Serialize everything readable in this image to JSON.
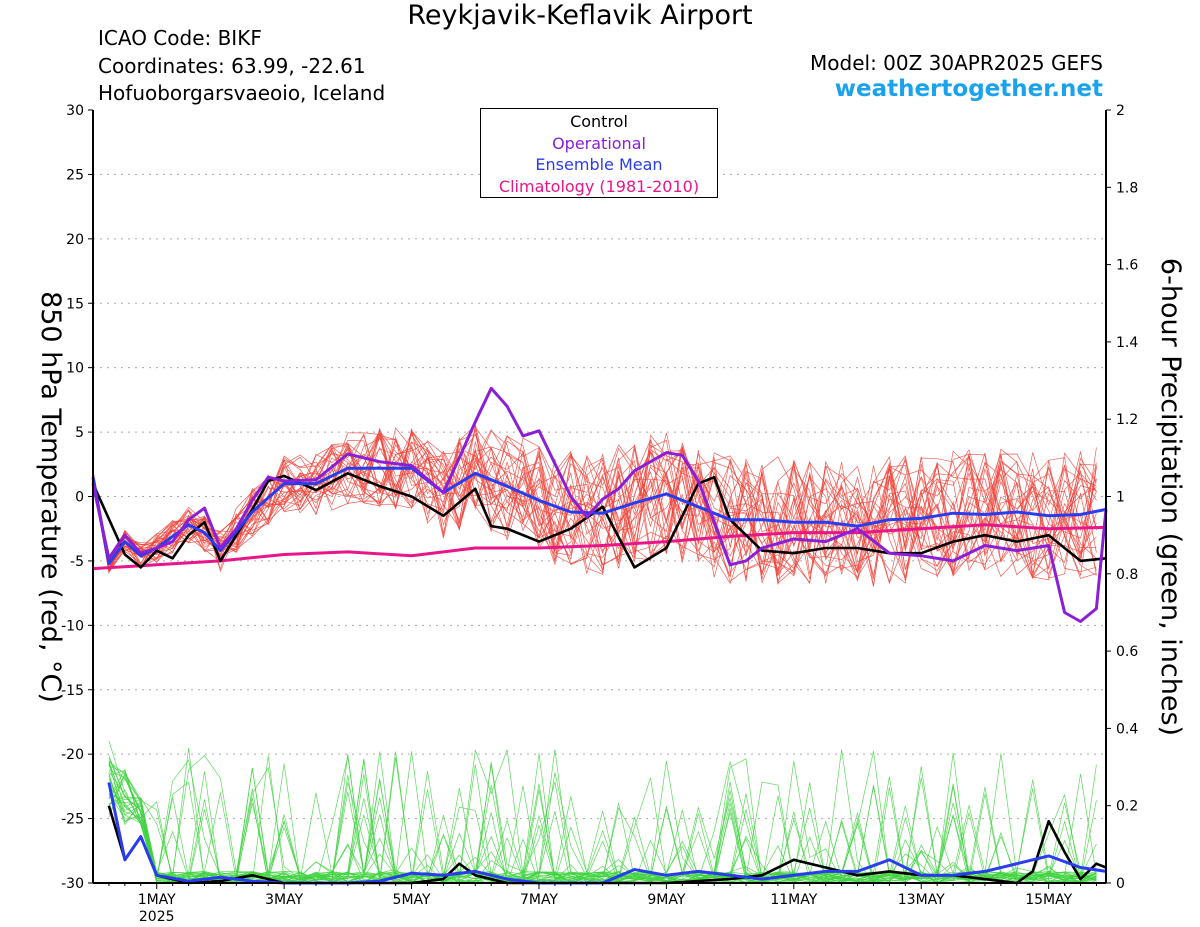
{
  "header": {
    "title": "Reykjavik-Keflavik Airport",
    "icao": "ICAO Code: BIKF",
    "coordinates": "Coordinates: 63.99, -22.61",
    "place": "Hofuoborgarsvaeoio, Iceland",
    "model": "Model: 00Z 30APR2025 GEFS",
    "website": "weathertogether.net"
  },
  "colors": {
    "control": "#000000",
    "operational": "#8a1fd6",
    "ensemble_mean": "#2a3cf0",
    "climatology": "#e8168a",
    "ensemble_temp": "#f0433a",
    "ensemble_precip": "#3fd23f",
    "website": "#1aa3ec"
  },
  "legend": {
    "items": [
      {
        "label": "Control",
        "color": "#000000"
      },
      {
        "label": "Operational",
        "color": "#8a1fd6"
      },
      {
        "label": "Ensemble Mean",
        "color": "#2a3cf0"
      },
      {
        "label": "Climatology (1981-2010)",
        "color": "#e8168a"
      }
    ]
  },
  "chart_data": {
    "type": "line",
    "title": "Reykjavik-Keflavik Airport",
    "ylabel_left": "850 hPa Temperature (red, °C)",
    "ylabel_right": "6-hour Precipitation (green, inches)",
    "x_unit": "days since 00Z 30APR2025",
    "xlim": [
      0,
      15.9
    ],
    "ylim_left": [
      -30,
      30
    ],
    "ylim_right": [
      0,
      2
    ],
    "yticks_left": [
      30,
      25,
      20,
      15,
      10,
      5,
      0,
      -5,
      -10,
      -15,
      -20,
      -25,
      -30
    ],
    "yticks_right": [
      "2",
      "1.8",
      "1.6",
      "1.4",
      "1.2",
      "1",
      "0.8",
      "0.6",
      "0.4",
      "0.2",
      "0"
    ],
    "xticks": [
      {
        "x": 1,
        "label": "1MAY",
        "sub": "2025"
      },
      {
        "x": 3,
        "label": "3MAY"
      },
      {
        "x": 5,
        "label": "5MAY"
      },
      {
        "x": 7,
        "label": "7MAY"
      },
      {
        "x": 9,
        "label": "9MAY"
      },
      {
        "x": 11,
        "label": "11MAY"
      },
      {
        "x": 13,
        "label": "13MAY"
      },
      {
        "x": 15,
        "label": "15MAY"
      }
    ],
    "grid": "dotted-horizontal",
    "legend_position": "top-center",
    "series": [
      {
        "name": "Control",
        "axis": "left",
        "color": "#000000",
        "x": [
          0,
          0.5,
          0.75,
          1,
          1.25,
          1.5,
          1.75,
          2,
          2.25,
          2.5,
          2.75,
          3,
          3.5,
          4,
          4.5,
          5,
          5.5,
          6,
          6.25,
          6.5,
          7,
          7.5,
          8,
          8.5,
          9,
          9.5,
          9.75,
          10,
          10.5,
          11,
          11.5,
          12,
          12.5,
          13,
          13.5,
          14,
          14.5,
          15,
          15.5,
          15.9
        ],
        "y": [
          1,
          -4.5,
          -5.5,
          -4.2,
          -4.8,
          -3,
          -2,
          -5,
          -3,
          -1,
          1.2,
          1.6,
          0.5,
          1.8,
          0.8,
          0,
          -1.5,
          0.6,
          -2.3,
          -2.5,
          -3.5,
          -2.5,
          -0.8,
          -5.5,
          -4,
          1,
          1.5,
          -1.8,
          -4.2,
          -4.4,
          -4,
          -4,
          -4.4,
          -4.4,
          -3.5,
          -3,
          -3.5,
          -3,
          -5,
          -4.8
        ]
      },
      {
        "name": "Operational",
        "axis": "left",
        "color": "#8a1fd6",
        "x": [
          0,
          0.25,
          0.5,
          0.75,
          1,
          1.25,
          1.5,
          1.75,
          2,
          2.25,
          2.5,
          2.75,
          3,
          3.5,
          4,
          4.5,
          5,
          5.5,
          5.75,
          6,
          6.25,
          6.5,
          6.75,
          7,
          7.5,
          7.75,
          8,
          8.25,
          8.5,
          9,
          9.25,
          9.5,
          9.75,
          10,
          10.25,
          10.5,
          11,
          11.5,
          12,
          12.5,
          13,
          13.5,
          14,
          14.5,
          15,
          15.25,
          15.5,
          15.75,
          15.9
        ],
        "y": [
          1,
          -4.8,
          -3,
          -4.4,
          -4,
          -3.5,
          -1.8,
          -0.9,
          -4,
          -2.5,
          -0.3,
          1.5,
          1.2,
          1.3,
          3.3,
          2.7,
          2.4,
          0.3,
          3,
          5.8,
          8.4,
          7,
          4.7,
          5.1,
          0,
          -1.6,
          -0.2,
          0.6,
          2,
          3.4,
          3.2,
          1.2,
          -2,
          -5.3,
          -5,
          -4,
          -3.3,
          -3.5,
          -2.5,
          -4.4,
          -4.6,
          -5,
          -3.8,
          -4.2,
          -3.8,
          -9,
          -9.7,
          -8.7,
          -1
        ]
      },
      {
        "name": "Ensemble Mean",
        "axis": "left",
        "color": "#2a3cf0",
        "x": [
          0,
          0.25,
          0.5,
          0.75,
          1,
          1.5,
          1.75,
          2,
          2.5,
          3,
          3.5,
          4,
          4.5,
          5,
          5.5,
          6,
          6.5,
          7,
          7.5,
          8,
          8.5,
          9,
          9.5,
          10,
          10.5,
          11,
          11.5,
          12,
          12.5,
          13,
          13.5,
          14,
          14.5,
          15,
          15.5,
          15.9
        ],
        "y": [
          1.5,
          -5.2,
          -3.5,
          -4.6,
          -4,
          -2.2,
          -2.8,
          -4.2,
          -1.2,
          1,
          1,
          2.2,
          2.2,
          2.2,
          0.3,
          1.8,
          0.8,
          -0.3,
          -1.2,
          -1.3,
          -0.5,
          0.2,
          -0.8,
          -1.8,
          -1.8,
          -2,
          -2,
          -2.3,
          -1.8,
          -1.7,
          -1.3,
          -1.4,
          -1.2,
          -1.5,
          -1.4,
          -1
        ]
      },
      {
        "name": "Climatology (1981-2010)",
        "axis": "left",
        "color": "#e8168a",
        "x": [
          0,
          1,
          2,
          3,
          4,
          5,
          6,
          7,
          8,
          9,
          10,
          11,
          12,
          13,
          14,
          15,
          15.9
        ],
        "y": [
          -5.6,
          -5.3,
          -5,
          -4.5,
          -4.3,
          -4.6,
          -4,
          -4,
          -3.8,
          -3.5,
          -3.1,
          -2.8,
          -2.8,
          -2.5,
          -2.2,
          -2.5,
          -2.4
        ]
      },
      {
        "name": "Control",
        "axis": "right",
        "color": "#000000",
        "x": [
          0.25,
          0.5,
          0.75,
          1,
          1.5,
          2,
          2.5,
          3,
          4,
          5,
          5.5,
          5.75,
          6,
          6.5,
          7,
          7.5,
          8,
          9,
          10,
          10.5,
          11,
          11.5,
          12,
          12.5,
          13,
          13.5,
          14,
          14.5,
          14.75,
          15,
          15.25,
          15.5,
          15.75,
          15.9
        ],
        "y": [
          0.2,
          0.06,
          0.12,
          0.02,
          0,
          0.005,
          0.02,
          0,
          0,
          0,
          0.01,
          0.05,
          0.02,
          0,
          0,
          0,
          0,
          0,
          0.01,
          0.02,
          0.06,
          0.04,
          0.02,
          0.03,
          0.02,
          0.02,
          0.01,
          0,
          0.03,
          0.16,
          0.08,
          0.01,
          0.05,
          0.04
        ]
      },
      {
        "name": "Ensemble Mean",
        "axis": "right",
        "color": "#2a3cf0",
        "x": [
          0.25,
          0.5,
          0.75,
          1,
          1.5,
          2,
          2.5,
          3,
          4,
          4.5,
          5,
          5.5,
          6,
          6.5,
          7,
          7.5,
          8,
          8.5,
          9,
          9.5,
          10,
          10.5,
          11,
          11.5,
          12,
          12.5,
          13,
          13.5,
          14,
          14.5,
          15,
          15.5,
          15.9
        ],
        "y": [
          0.26,
          0.06,
          0.12,
          0.02,
          0.005,
          0.015,
          0.005,
          0,
          0,
          0.005,
          0.025,
          0.02,
          0.03,
          0.01,
          0,
          0,
          0,
          0.035,
          0.02,
          0.03,
          0.02,
          0.01,
          0.02,
          0.03,
          0.03,
          0.06,
          0.02,
          0.02,
          0.03,
          0.05,
          0.07,
          0.04,
          0.03
        ]
      }
    ]
  }
}
